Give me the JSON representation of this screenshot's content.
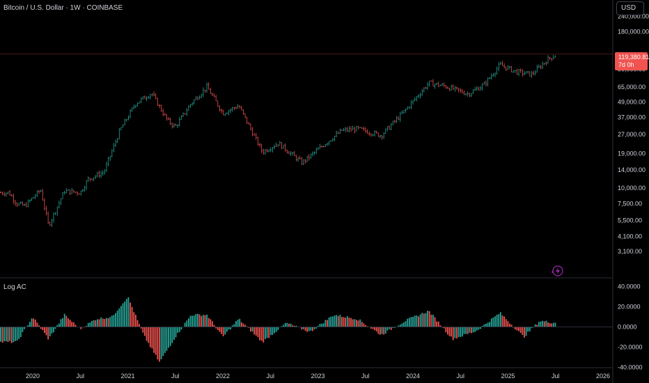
{
  "header": {
    "title": "Bitcoin / U.S. Dollar · 1W · COINBASE",
    "currency_button": "USD",
    "last_price": "119,380.81",
    "countdown": "7d 0h"
  },
  "indicator": {
    "name": "Log AC"
  },
  "chart_data": [
    {
      "type": "candlestick",
      "title": "Bitcoin / U.S. Dollar · 1W · COINBASE",
      "scale": "log",
      "price_ticks": [
        "240,000.00",
        "180,000.00",
        "119,380.81",
        "90,000.00",
        "65,000.00",
        "49,000.00",
        "37,000.00",
        "27,000.00",
        "19,000.00",
        "14,000.00",
        "10,000.00",
        "7,500.00",
        "5,500.00",
        "4,100.00",
        "3,100.00"
      ],
      "price_tick_values": [
        240000,
        180000,
        119380.81,
        90000,
        65000,
        49000,
        37000,
        27000,
        19000,
        14000,
        10000,
        7500,
        5500,
        4100,
        3100
      ],
      "time_ticks": [
        "2020",
        "Jul",
        "2021",
        "Jul",
        "2022",
        "Jul",
        "2023",
        "Jul",
        "2024",
        "Jul",
        "2025",
        "Jul",
        "2026"
      ],
      "last_price": 119380.81,
      "closes_weekly_approx": [
        {
          "date": "2019-10",
          "close": 9200
        },
        {
          "date": "2019-11",
          "close": 7500
        },
        {
          "date": "2019-12",
          "close": 7200
        },
        {
          "date": "2020-02",
          "close": 9700
        },
        {
          "date": "2020-03",
          "close": 5000
        },
        {
          "date": "2020-05",
          "close": 9500
        },
        {
          "date": "2020-07",
          "close": 9200
        },
        {
          "date": "2020-08",
          "close": 11800
        },
        {
          "date": "2020-10",
          "close": 13500
        },
        {
          "date": "2020-12",
          "close": 29000
        },
        {
          "date": "2021-02",
          "close": 48000
        },
        {
          "date": "2021-04",
          "close": 58000
        },
        {
          "date": "2021-06",
          "close": 35000
        },
        {
          "date": "2021-07",
          "close": 31000
        },
        {
          "date": "2021-09",
          "close": 48000
        },
        {
          "date": "2021-11",
          "close": 65000
        },
        {
          "date": "2022-01",
          "close": 40000
        },
        {
          "date": "2022-03",
          "close": 46000
        },
        {
          "date": "2022-06",
          "close": 19500
        },
        {
          "date": "2022-08",
          "close": 23000
        },
        {
          "date": "2022-11",
          "close": 16000
        },
        {
          "date": "2023-02",
          "close": 23000
        },
        {
          "date": "2023-04",
          "close": 29000
        },
        {
          "date": "2023-06",
          "close": 30000
        },
        {
          "date": "2023-09",
          "close": 26500
        },
        {
          "date": "2023-12",
          "close": 42000
        },
        {
          "date": "2024-03",
          "close": 70000
        },
        {
          "date": "2024-05",
          "close": 66000
        },
        {
          "date": "2024-08",
          "close": 57000
        },
        {
          "date": "2024-10",
          "close": 68000
        },
        {
          "date": "2024-12",
          "close": 98000
        },
        {
          "date": "2025-02",
          "close": 86000
        },
        {
          "date": "2025-04",
          "close": 82000
        },
        {
          "date": "2025-06",
          "close": 108000
        },
        {
          "date": "2025-07",
          "close": 119380.81
        }
      ]
    },
    {
      "type": "bar",
      "title": "Log AC",
      "value_ticks": [
        "40.0000",
        "20.0000",
        "0.0000",
        "-20.0000",
        "-40.0000"
      ],
      "ylim": [
        -40,
        40
      ],
      "values_weekly_approx": [
        {
          "date": "2019-11",
          "value": -15
        },
        {
          "date": "2020-01",
          "value": 10
        },
        {
          "date": "2020-03",
          "value": -12
        },
        {
          "date": "2020-05",
          "value": 12
        },
        {
          "date": "2020-07",
          "value": -2
        },
        {
          "date": "2020-09",
          "value": 8
        },
        {
          "date": "2020-11",
          "value": 10
        },
        {
          "date": "2021-01",
          "value": 30
        },
        {
          "date": "2021-03",
          "value": -8
        },
        {
          "date": "2021-05",
          "value": -35
        },
        {
          "date": "2021-07",
          "value": -10
        },
        {
          "date": "2021-09",
          "value": 12
        },
        {
          "date": "2021-11",
          "value": 12
        },
        {
          "date": "2022-01",
          "value": -10
        },
        {
          "date": "2022-03",
          "value": 8
        },
        {
          "date": "2022-06",
          "value": -15
        },
        {
          "date": "2022-09",
          "value": 4
        },
        {
          "date": "2022-12",
          "value": -5
        },
        {
          "date": "2023-03",
          "value": 12
        },
        {
          "date": "2023-06",
          "value": 8
        },
        {
          "date": "2023-09",
          "value": -8
        },
        {
          "date": "2023-12",
          "value": 6
        },
        {
          "date": "2024-03",
          "value": 16
        },
        {
          "date": "2024-06",
          "value": -12
        },
        {
          "date": "2024-09",
          "value": -4
        },
        {
          "date": "2024-12",
          "value": 14
        },
        {
          "date": "2025-03",
          "value": -10
        },
        {
          "date": "2025-05",
          "value": 6
        },
        {
          "date": "2025-07",
          "value": 4
        }
      ]
    }
  ],
  "colors": {
    "background": "#000000",
    "up": "#26a69a",
    "down": "#ef5350",
    "text": "#d1d4dc",
    "price_line": "#f05350",
    "bolt": "#9c27b0"
  }
}
